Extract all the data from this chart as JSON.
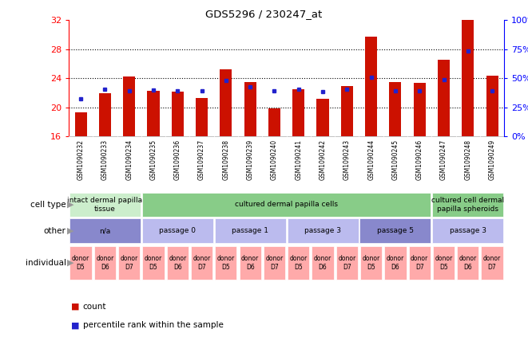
{
  "title": "GDS5296 / 230247_at",
  "samples": [
    "GSM1090232",
    "GSM1090233",
    "GSM1090234",
    "GSM1090235",
    "GSM1090236",
    "GSM1090237",
    "GSM1090238",
    "GSM1090239",
    "GSM1090240",
    "GSM1090241",
    "GSM1090242",
    "GSM1090243",
    "GSM1090244",
    "GSM1090245",
    "GSM1090246",
    "GSM1090247",
    "GSM1090248",
    "GSM1090249"
  ],
  "count_values": [
    19.3,
    22.0,
    24.3,
    22.3,
    22.2,
    21.3,
    25.2,
    23.5,
    19.9,
    22.5,
    21.2,
    22.9,
    29.7,
    23.5,
    23.4,
    26.6,
    32.0,
    24.4
  ],
  "percentile_values": [
    21.2,
    22.5,
    22.3,
    22.4,
    22.3,
    22.3,
    23.7,
    22.8,
    22.3,
    22.5,
    22.2,
    22.5,
    24.1,
    22.3,
    22.3,
    23.8,
    27.8,
    22.3
  ],
  "ymin": 16,
  "ymax": 32,
  "yticks": [
    16,
    20,
    24,
    28,
    32
  ],
  "bar_color": "#cc1100",
  "dot_color": "#2222cc",
  "bg_color": "#ffffff",
  "xlabel_bg": "#cccccc",
  "cell_type_groups": [
    {
      "label": "intact dermal papilla\ntissue",
      "start": 0,
      "end": 3,
      "color": "#cceecc"
    },
    {
      "label": "cultured dermal papilla cells",
      "start": 3,
      "end": 15,
      "color": "#88cc88"
    },
    {
      "label": "cultured cell dermal\npapilla spheroids",
      "start": 15,
      "end": 18,
      "color": "#88cc88"
    }
  ],
  "other_groups": [
    {
      "label": "n/a",
      "start": 0,
      "end": 3,
      "color": "#8888cc"
    },
    {
      "label": "passage 0",
      "start": 3,
      "end": 6,
      "color": "#bbbbee"
    },
    {
      "label": "passage 1",
      "start": 6,
      "end": 9,
      "color": "#bbbbee"
    },
    {
      "label": "passage 3",
      "start": 9,
      "end": 12,
      "color": "#bbbbee"
    },
    {
      "label": "passage 5",
      "start": 12,
      "end": 15,
      "color": "#8888cc"
    },
    {
      "label": "passage 3",
      "start": 15,
      "end": 18,
      "color": "#bbbbee"
    }
  ],
  "individual_cells": [
    "donor\nD5",
    "donor\nD6",
    "donor\nD7",
    "donor\nD5",
    "donor\nD6",
    "donor\nD7",
    "donor\nD5",
    "donor\nD6",
    "donor\nD7",
    "donor\nD5",
    "donor\nD6",
    "donor\nD7",
    "donor\nD5",
    "donor\nD6",
    "donor\nD7",
    "donor\nD5",
    "donor\nD6",
    "donor\nD7"
  ],
  "individual_color": "#ffaaaa",
  "row_labels": [
    "cell type",
    "other",
    "individual"
  ],
  "arrow_color": "#999999",
  "legend_items": [
    {
      "color": "#cc1100",
      "label": "count"
    },
    {
      "color": "#2222cc",
      "label": "percentile rank within the sample"
    }
  ]
}
